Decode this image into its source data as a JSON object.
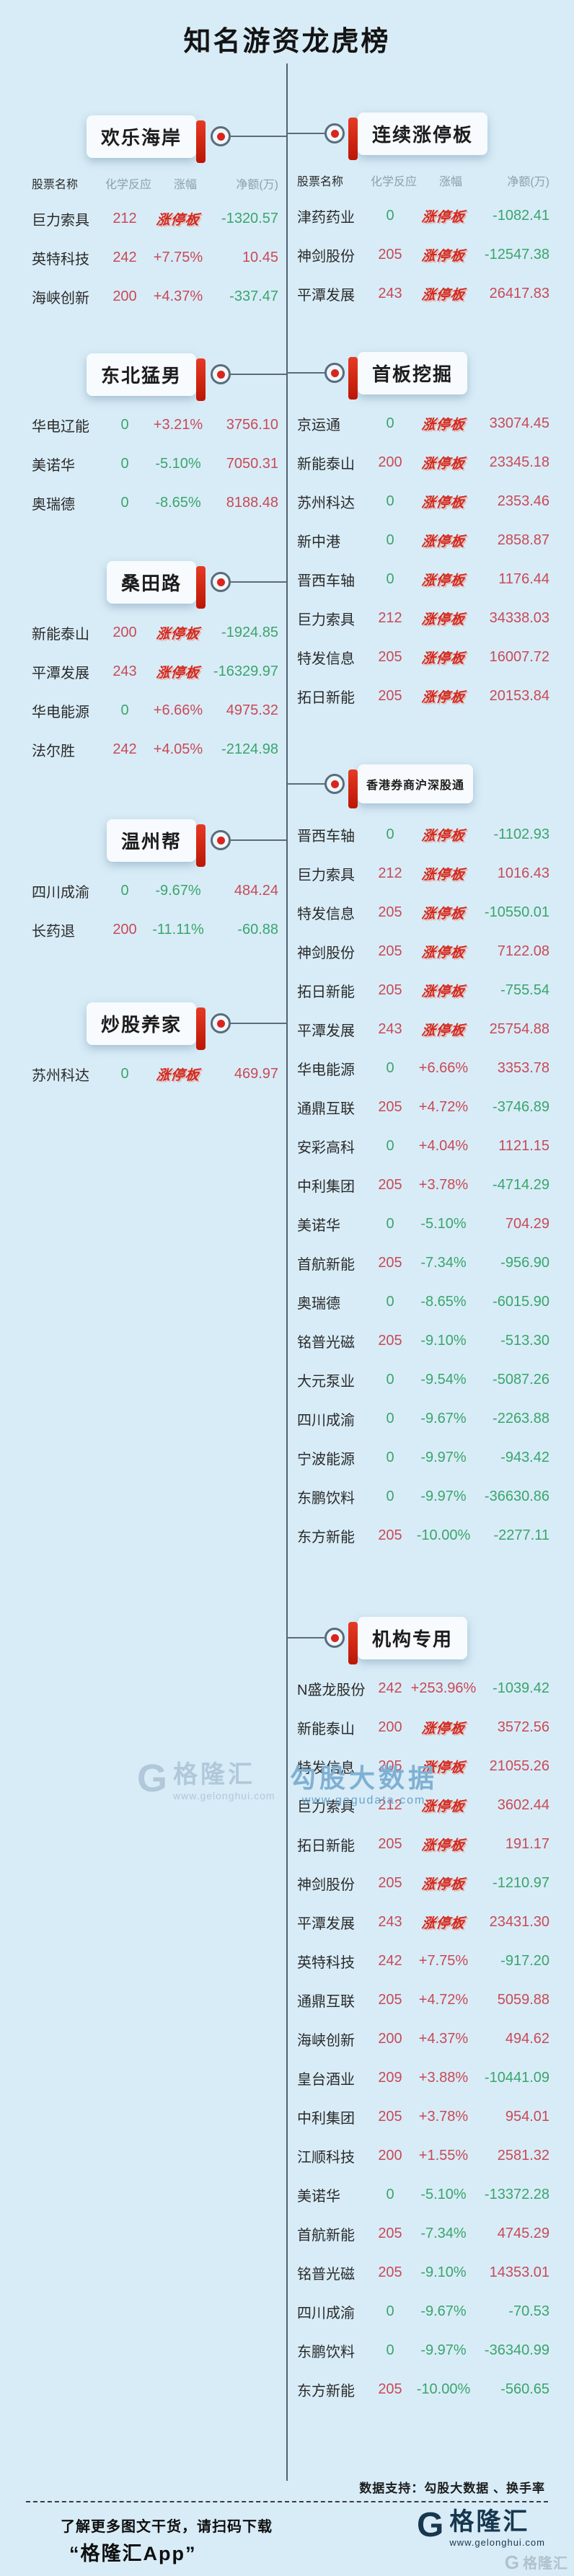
{
  "title": "知名游资龙虎榜",
  "colors": {
    "background": "#d8ecf7",
    "accent_red": "#d9251c",
    "limit_red": "#d3291d",
    "red": "#c84a56",
    "green": "#3aa56b"
  },
  "limit_up_label": "涨停板",
  "chart_data": {
    "type": "table",
    "title": "知名游资龙虎榜",
    "columns": [
      "股票名称",
      "化学反应",
      "涨幅",
      "净额(万)"
    ],
    "groups": [
      {
        "name": "欢乐海岸",
        "column": "left",
        "show_header": true,
        "small": false,
        "rows": [
          {
            "name": "巨力索具",
            "reaction": "212",
            "change": "涨停板",
            "net": "-1320.57"
          },
          {
            "name": "英特科技",
            "reaction": "242",
            "change": "+7.75%",
            "net": "10.45"
          },
          {
            "name": "海峡创新",
            "reaction": "200",
            "change": "+4.37%",
            "net": "-337.47"
          }
        ]
      },
      {
        "name": "东北猛男",
        "column": "left",
        "show_header": false,
        "small": false,
        "rows": [
          {
            "name": "华电辽能",
            "reaction": "0",
            "change": "+3.21%",
            "net": "3756.10"
          },
          {
            "name": "美诺华",
            "reaction": "0",
            "change": "-5.10%",
            "net": "7050.31"
          },
          {
            "name": "奥瑞德",
            "reaction": "0",
            "change": "-8.65%",
            "net": "8188.48"
          }
        ]
      },
      {
        "name": "桑田路",
        "column": "left",
        "show_header": false,
        "small": false,
        "rows": [
          {
            "name": "新能泰山",
            "reaction": "200",
            "change": "涨停板",
            "net": "-1924.85"
          },
          {
            "name": "平潭发展",
            "reaction": "243",
            "change": "涨停板",
            "net": "-16329.97"
          },
          {
            "name": "华电能源",
            "reaction": "0",
            "change": "+6.66%",
            "net": "4975.32"
          },
          {
            "name": "法尔胜",
            "reaction": "242",
            "change": "+4.05%",
            "net": "-2124.98"
          }
        ]
      },
      {
        "name": "温州帮",
        "column": "left",
        "show_header": false,
        "small": false,
        "rows": [
          {
            "name": "四川成渝",
            "reaction": "0",
            "change": "-9.67%",
            "net": "484.24"
          },
          {
            "name": "长药退",
            "reaction": "200",
            "change": "-11.11%",
            "net": "-60.88"
          }
        ]
      },
      {
        "name": "炒股养家",
        "column": "left",
        "show_header": false,
        "small": false,
        "rows": [
          {
            "name": "苏州科达",
            "reaction": "0",
            "change": "涨停板",
            "net": "469.97"
          }
        ]
      },
      {
        "name": "连续涨停板",
        "column": "right",
        "show_header": true,
        "small": false,
        "rows": [
          {
            "name": "津药药业",
            "reaction": "0",
            "change": "涨停板",
            "net": "-1082.41"
          },
          {
            "name": "神剑股份",
            "reaction": "205",
            "change": "涨停板",
            "net": "-12547.38"
          },
          {
            "name": "平潭发展",
            "reaction": "243",
            "change": "涨停板",
            "net": "26417.83"
          }
        ]
      },
      {
        "name": "首板挖掘",
        "column": "right",
        "show_header": false,
        "small": false,
        "rows": [
          {
            "name": "京运通",
            "reaction": "0",
            "change": "涨停板",
            "net": "33074.45"
          },
          {
            "name": "新能泰山",
            "reaction": "200",
            "change": "涨停板",
            "net": "23345.18"
          },
          {
            "name": "苏州科达",
            "reaction": "0",
            "change": "涨停板",
            "net": "2353.46"
          },
          {
            "name": "新中港",
            "reaction": "0",
            "change": "涨停板",
            "net": "2858.87"
          },
          {
            "name": "晋西车轴",
            "reaction": "0",
            "change": "涨停板",
            "net": "1176.44"
          },
          {
            "name": "巨力索具",
            "reaction": "212",
            "change": "涨停板",
            "net": "34338.03"
          },
          {
            "name": "特发信息",
            "reaction": "205",
            "change": "涨停板",
            "net": "16007.72"
          },
          {
            "name": "拓日新能",
            "reaction": "205",
            "change": "涨停板",
            "net": "20153.84"
          }
        ]
      },
      {
        "name": "香港券商沪深股通",
        "column": "right",
        "show_header": false,
        "small": true,
        "rows": [
          {
            "name": "晋西车轴",
            "reaction": "0",
            "change": "涨停板",
            "net": "-1102.93"
          },
          {
            "name": "巨力索具",
            "reaction": "212",
            "change": "涨停板",
            "net": "1016.43"
          },
          {
            "name": "特发信息",
            "reaction": "205",
            "change": "涨停板",
            "net": "-10550.01"
          },
          {
            "name": "神剑股份",
            "reaction": "205",
            "change": "涨停板",
            "net": "7122.08"
          },
          {
            "name": "拓日新能",
            "reaction": "205",
            "change": "涨停板",
            "net": "-755.54"
          },
          {
            "name": "平潭发展",
            "reaction": "243",
            "change": "涨停板",
            "net": "25754.88"
          },
          {
            "name": "华电能源",
            "reaction": "0",
            "change": "+6.66%",
            "net": "3353.78"
          },
          {
            "name": "通鼎互联",
            "reaction": "205",
            "change": "+4.72%",
            "net": "-3746.89"
          },
          {
            "name": "安彩高科",
            "reaction": "0",
            "change": "+4.04%",
            "net": "1121.15"
          },
          {
            "name": "中利集团",
            "reaction": "205",
            "change": "+3.78%",
            "net": "-4714.29"
          },
          {
            "name": "美诺华",
            "reaction": "0",
            "change": "-5.10%",
            "net": "704.29"
          },
          {
            "name": "首航新能",
            "reaction": "205",
            "change": "-7.34%",
            "net": "-956.90"
          },
          {
            "name": "奥瑞德",
            "reaction": "0",
            "change": "-8.65%",
            "net": "-6015.90"
          },
          {
            "name": "铭普光磁",
            "reaction": "205",
            "change": "-9.10%",
            "net": "-513.30"
          },
          {
            "name": "大元泵业",
            "reaction": "0",
            "change": "-9.54%",
            "net": "-5087.26"
          },
          {
            "name": "四川成渝",
            "reaction": "0",
            "change": "-9.67%",
            "net": "-2263.88"
          },
          {
            "name": "宁波能源",
            "reaction": "0",
            "change": "-9.97%",
            "net": "-943.42"
          },
          {
            "name": "东鹏饮料",
            "reaction": "0",
            "change": "-9.97%",
            "net": "-36630.86"
          },
          {
            "name": "东方新能",
            "reaction": "205",
            "change": "-10.00%",
            "net": "-2277.11"
          }
        ]
      },
      {
        "name": "机构专用",
        "column": "right",
        "show_header": false,
        "small": false,
        "rows": [
          {
            "name": "N盛龙股份",
            "reaction": "242",
            "change": "+253.96%",
            "net": "-1039.42"
          },
          {
            "name": "新能泰山",
            "reaction": "200",
            "change": "涨停板",
            "net": "3572.56"
          },
          {
            "name": "特发信息",
            "reaction": "205",
            "change": "涨停板",
            "net": "21055.26"
          },
          {
            "name": "巨力索具",
            "reaction": "212",
            "change": "涨停板",
            "net": "3602.44"
          },
          {
            "name": "拓日新能",
            "reaction": "205",
            "change": "涨停板",
            "net": "191.17"
          },
          {
            "name": "神剑股份",
            "reaction": "205",
            "change": "涨停板",
            "net": "-1210.97"
          },
          {
            "name": "平潭发展",
            "reaction": "243",
            "change": "涨停板",
            "net": "23431.30"
          },
          {
            "name": "英特科技",
            "reaction": "242",
            "change": "+7.75%",
            "net": "-917.20"
          },
          {
            "name": "通鼎互联",
            "reaction": "205",
            "change": "+4.72%",
            "net": "5059.88"
          },
          {
            "name": "海峡创新",
            "reaction": "200",
            "change": "+4.37%",
            "net": "494.62"
          },
          {
            "name": "皇台酒业",
            "reaction": "209",
            "change": "+3.88%",
            "net": "-10441.09"
          },
          {
            "name": "中利集团",
            "reaction": "205",
            "change": "+3.78%",
            "net": "954.01"
          },
          {
            "name": "江顺科技",
            "reaction": "200",
            "change": "+1.55%",
            "net": "2581.32"
          },
          {
            "name": "美诺华",
            "reaction": "0",
            "change": "-5.10%",
            "net": "-13372.28"
          },
          {
            "name": "首航新能",
            "reaction": "205",
            "change": "-7.34%",
            "net": "4745.29"
          },
          {
            "name": "铭普光磁",
            "reaction": "205",
            "change": "-9.10%",
            "net": "14353.01"
          },
          {
            "name": "四川成渝",
            "reaction": "0",
            "change": "-9.67%",
            "net": "-70.53"
          },
          {
            "name": "东鹏饮料",
            "reaction": "0",
            "change": "-9.97%",
            "net": "-36340.99"
          },
          {
            "name": "东方新能",
            "reaction": "205",
            "change": "-10.00%",
            "net": "-560.65"
          }
        ]
      }
    ]
  },
  "watermarks": {
    "gelonghui_g": "G",
    "gelonghui_name": "格隆汇",
    "gelonghui_url": "www.gelonghui.com",
    "gogu_name": "勾股大数据",
    "gogu_url": "www.gogudata.com"
  },
  "footer": {
    "support": "数据支持：勾股大数据 、换手率",
    "promo_line1": "了解更多图文干货，请扫码下载",
    "promo_line2": "“格隆汇App”",
    "logo_g": "G",
    "logo_name": "格隆汇",
    "logo_url": "www.gelonghui.com",
    "corner_g": "G",
    "corner_text": "格隆汇"
  }
}
